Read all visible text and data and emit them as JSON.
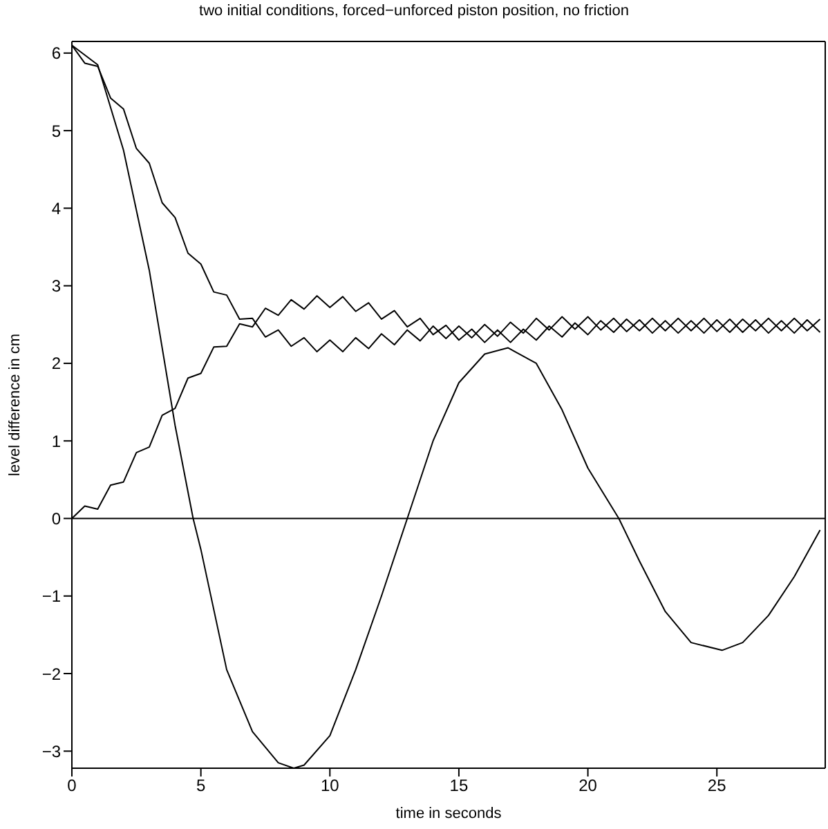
{
  "chart_data": {
    "type": "line",
    "title": "two initial conditions, forced−unforced piston position, no friction",
    "xlabel": "time in seconds",
    "ylabel": "level difference in cm",
    "xlim": [
      0,
      29.2
    ],
    "ylim": [
      -3.22,
      6.15
    ],
    "xticks": [
      0,
      5,
      10,
      15,
      20,
      25
    ],
    "yticks": [
      -3,
      -2,
      -1,
      0,
      1,
      2,
      3,
      4,
      5,
      6
    ],
    "ref_lines": [
      {
        "axis": "y",
        "value": 0,
        "color": "#000000"
      }
    ],
    "series": [
      {
        "color": "#000000",
        "x": [
          0,
          1,
          2,
          3,
          4,
          4.7,
          5,
          6,
          7,
          8,
          8.6,
          9,
          10,
          11,
          12,
          13,
          14,
          15,
          16,
          16.9,
          18,
          19,
          20,
          21.2,
          22,
          23,
          24,
          25.2,
          26,
          27,
          28,
          29
        ],
        "values": [
          6.1,
          5.85,
          4.75,
          3.2,
          1.2,
          0,
          -0.4,
          -1.95,
          -2.75,
          -3.15,
          -3.22,
          -3.18,
          -2.8,
          -1.95,
          -1.0,
          0,
          1.0,
          1.75,
          2.12,
          2.2,
          2.0,
          1.4,
          0.65,
          0,
          -0.55,
          -1.2,
          -1.6,
          -1.7,
          -1.6,
          -1.25,
          -0.75,
          -0.15
        ]
      },
      {
        "color": "#000000",
        "x": [
          0,
          0.5,
          1,
          1.5,
          2,
          2.5,
          3,
          3.5,
          4,
          4.5,
          5,
          5.5,
          6,
          6.5,
          7,
          7.5,
          8,
          8.5,
          9,
          9.5,
          10,
          10.5,
          11,
          11.5,
          12,
          12.5,
          13,
          13.5,
          14,
          14.5,
          15,
          15.5,
          16,
          16.5,
          17,
          17.5,
          18,
          18.5,
          19,
          19.5,
          20,
          20.5,
          21,
          21.5,
          22,
          22.5,
          23,
          23.5,
          24,
          24.5,
          25,
          25.5,
          26,
          26.5,
          27,
          27.5,
          28,
          28.5,
          29
        ],
        "values": [
          6.1,
          5.87,
          5.83,
          5.42,
          5.28,
          4.77,
          4.58,
          4.07,
          3.88,
          3.42,
          3.28,
          2.92,
          2.88,
          2.57,
          2.58,
          2.34,
          2.43,
          2.22,
          2.33,
          2.15,
          2.3,
          2.15,
          2.33,
          2.19,
          2.38,
          2.24,
          2.43,
          2.29,
          2.48,
          2.32,
          2.48,
          2.33,
          2.5,
          2.35,
          2.53,
          2.39,
          2.58,
          2.43,
          2.6,
          2.44,
          2.6,
          2.43,
          2.58,
          2.41,
          2.56,
          2.39,
          2.55,
          2.39,
          2.55,
          2.39,
          2.56,
          2.4,
          2.57,
          2.42,
          2.58,
          2.42,
          2.58,
          2.42,
          2.57
        ]
      },
      {
        "color": "#000000",
        "x": [
          0,
          0.5,
          1,
          1.5,
          2,
          2.5,
          3,
          3.5,
          4,
          4.5,
          5,
          5.5,
          6,
          6.5,
          7,
          7.5,
          8,
          8.5,
          9,
          9.5,
          10,
          10.5,
          11,
          11.5,
          12,
          12.5,
          13,
          13.5,
          14,
          14.5,
          15,
          15.5,
          16,
          16.5,
          17,
          17.5,
          18,
          18.5,
          19,
          19.5,
          20,
          20.5,
          21,
          21.5,
          22,
          22.5,
          23,
          23.5,
          24,
          24.5,
          25,
          25.5,
          26,
          26.5,
          27,
          27.5,
          28,
          28.5,
          29
        ],
        "values": [
          0,
          0.16,
          0.12,
          0.43,
          0.47,
          0.85,
          0.92,
          1.33,
          1.42,
          1.81,
          1.87,
          2.21,
          2.22,
          2.51,
          2.47,
          2.71,
          2.62,
          2.82,
          2.7,
          2.87,
          2.72,
          2.86,
          2.67,
          2.78,
          2.57,
          2.68,
          2.47,
          2.58,
          2.37,
          2.49,
          2.3,
          2.44,
          2.27,
          2.43,
          2.27,
          2.44,
          2.3,
          2.48,
          2.34,
          2.52,
          2.37,
          2.55,
          2.4,
          2.57,
          2.42,
          2.58,
          2.42,
          2.58,
          2.42,
          2.58,
          2.41,
          2.57,
          2.4,
          2.56,
          2.39,
          2.55,
          2.39,
          2.56,
          2.4
        ]
      }
    ]
  }
}
